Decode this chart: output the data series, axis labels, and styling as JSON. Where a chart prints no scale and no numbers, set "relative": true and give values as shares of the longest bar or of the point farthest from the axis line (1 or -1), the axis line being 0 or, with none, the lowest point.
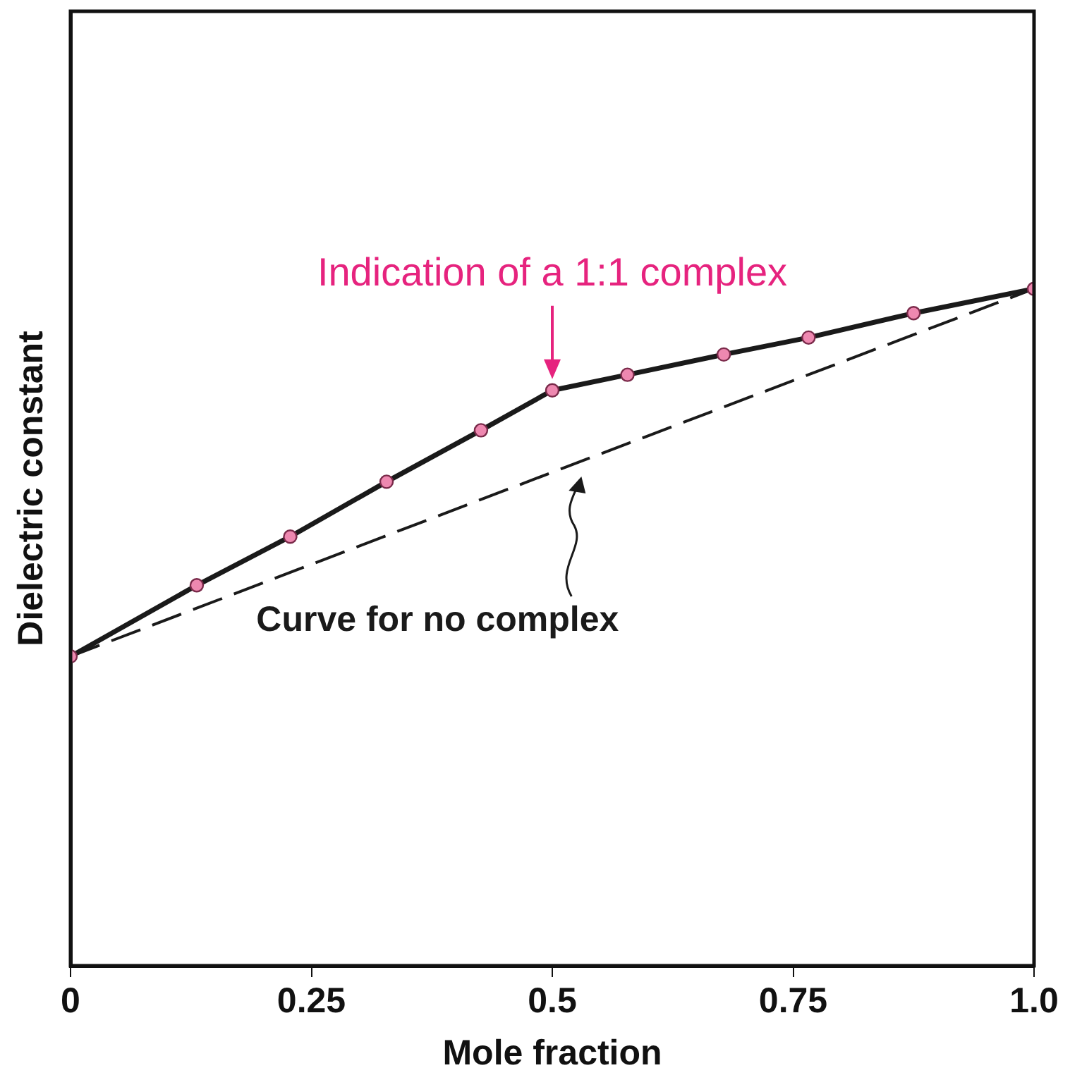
{
  "chart_data": {
    "type": "line",
    "xlabel": "Mole fraction",
    "ylabel": "Dielectric constant",
    "relative": true,
    "xlim": [
      0,
      1
    ],
    "xticks": [
      0,
      0.25,
      0.5,
      0.75,
      {
        "value": 1,
        "label": "1.0"
      }
    ],
    "grid": false,
    "legend": false,
    "tick_labels": "x",
    "series": [
      {
        "color": "#1a1a1a",
        "marker": "circle",
        "line_style": "solid",
        "x": [
          0,
          0.131,
          0.228,
          0.328,
          0.426,
          0.5,
          0.578,
          0.678,
          0.766,
          0.875,
          1
        ],
        "values": [
          0.457,
          0.562,
          0.634,
          0.715,
          0.791,
          0.85,
          0.873,
          0.903,
          0.928,
          0.964,
          1
        ]
      },
      {
        "color": "#1a1a1a",
        "marker": "none",
        "line_style": "dashed",
        "x": [
          0,
          0.5,
          1
        ],
        "values": [
          0.457,
          0.729,
          1
        ]
      }
    ],
    "annotations": [
      {
        "text": "Indication of a 1:1 complex",
        "x": 0.5,
        "y": 0.85
      },
      "Curve for no complex"
    ]
  }
}
